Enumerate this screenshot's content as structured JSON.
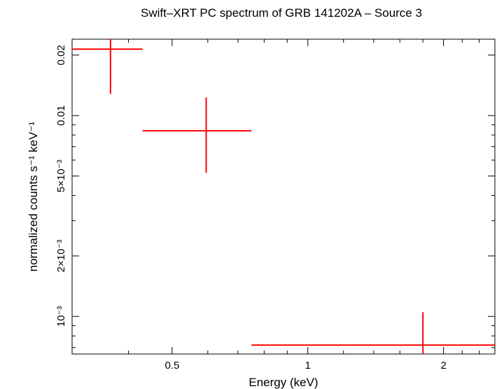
{
  "chart_data": {
    "type": "scatter",
    "title": "Swift–XRT PC spectrum of GRB 141202A – Source 3",
    "xlabel": "Energy (keV)",
    "ylabel": "normalized counts s⁻¹ keV⁻¹",
    "x_scale": "log",
    "y_scale": "log",
    "xlim": [
      0.3,
      2.6
    ],
    "ylim": [
      0.00065,
      0.024
    ],
    "x_ticks": [
      {
        "value": 0.5,
        "label": "0.5"
      },
      {
        "value": 1,
        "label": "1"
      },
      {
        "value": 2,
        "label": "2"
      }
    ],
    "y_ticks": [
      {
        "value": 0.001,
        "label": "10⁻³"
      },
      {
        "value": 0.002,
        "label": "2×10⁻³"
      },
      {
        "value": 0.005,
        "label": "5×10⁻³"
      },
      {
        "value": 0.01,
        "label": "0.01"
      },
      {
        "value": 0.02,
        "label": "0.02"
      }
    ],
    "series": [
      {
        "color": "#ff0000",
        "points": [
          {
            "x": 0.365,
            "x_lo": 0.3,
            "x_hi": 0.43,
            "y": 0.0214,
            "y_lo": 0.0128,
            "y_hi": 0.024
          },
          {
            "x": 0.595,
            "x_lo": 0.43,
            "x_hi": 0.75,
            "y": 0.0084,
            "y_lo": 0.0052,
            "y_hi": 0.0123
          },
          {
            "x": 1.8,
            "x_lo": 0.75,
            "x_hi": 2.6,
            "y": 0.00072,
            "y_lo": 0.00065,
            "y_hi": 0.00105
          }
        ]
      }
    ]
  }
}
